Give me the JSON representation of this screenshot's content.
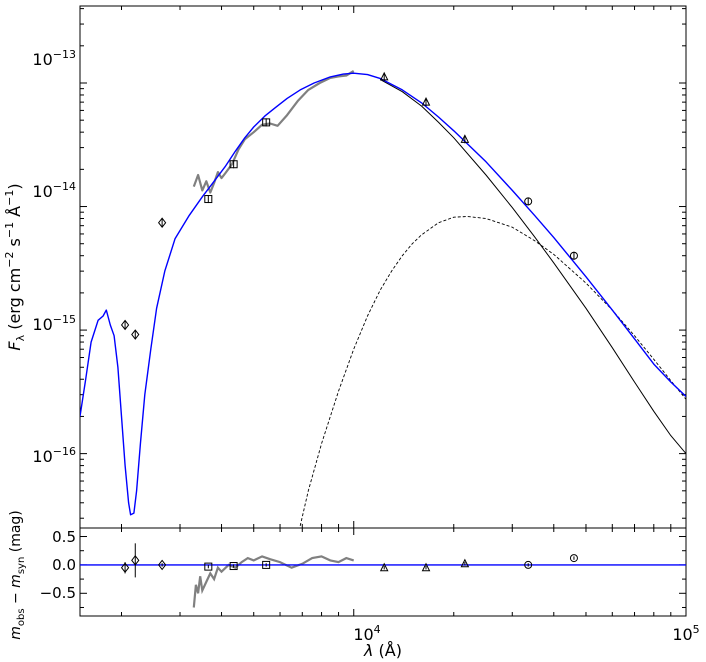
{
  "chart_data": [
    {
      "type": "line",
      "panel": "SED",
      "x_scale": "log",
      "y_scale": "log",
      "xlim": [
        1500,
        100000
      ],
      "ylim": [
        2.5e-17,
        4.2e-13
      ],
      "ylabel": "F_λ (erg cm^−2 s^−1 Å^−1)",
      "ylabel_parts": {
        "base": "F",
        "sub": "λ",
        "units": "(erg cm",
        "exp1": "−2",
        "s": " s",
        "exp2": "−1",
        "ang": " Å",
        "exp3": "−1",
        "close": ")"
      },
      "y_tick_labels": [
        {
          "value": 1e-13,
          "mant": "10",
          "exp": "−13"
        },
        {
          "value": 1e-14,
          "mant": "10",
          "exp": "−14"
        },
        {
          "value": 1e-15,
          "mant": "10",
          "exp": "−15"
        },
        {
          "value": 1e-16,
          "mant": "10",
          "exp": "−16"
        }
      ],
      "colors": {
        "total_model": "#0000ff",
        "hot_component": "#000000",
        "cool_component": "#000000",
        "spectrum": "#808080",
        "photometry": "#000000"
      },
      "series": [
        {
          "style": "blue-solid",
          "x": [
            1500,
            1560,
            1620,
            1700,
            1760,
            1800,
            1850,
            1900,
            1950,
            2000,
            2050,
            2100,
            2130,
            2180,
            2220,
            2280,
            2350,
            2450,
            2550,
            2700,
            2900,
            3200,
            3500,
            3800,
            4100,
            4400,
            4700,
            5000,
            5400,
            5800,
            6300,
            6900,
            7600,
            8500,
            9300,
            10000,
            11000,
            12000,
            14000,
            16000,
            18000,
            20000,
            25000,
            30000,
            35000,
            40000,
            50000,
            60000,
            70000,
            80000,
            90000,
            100000
          ],
          "y": [
            2e-16,
            4e-16,
            8e-16,
            1.2e-15,
            1.3e-15,
            1.45e-15,
            1.1e-15,
            9e-16,
            5e-16,
            2e-16,
            8e-17,
            4e-17,
            3.2e-17,
            3.3e-17,
            5e-17,
            1.2e-16,
            3e-16,
            7e-16,
            1.5e-15,
            3e-15,
            5.5e-15,
            8.5e-15,
            1.2e-14,
            1.6e-14,
            2.1e-14,
            2.8e-14,
            3.6e-14,
            4.4e-14,
            5.4e-14,
            6.3e-14,
            7.5e-14,
            8.8e-14,
            1e-13,
            1.12e-13,
            1.18e-13,
            1.2e-13,
            1.17e-13,
            1.09e-13,
            8.8e-14,
            6.9e-14,
            5.3e-14,
            4.1e-14,
            2.3e-14,
            1.35e-14,
            8.5e-15,
            5.6e-15,
            2.7e-15,
            1.45e-15,
            8.5e-16,
            5.3e-16,
            3.8e-16,
            2.9e-16
          ]
        },
        {
          "style": "black-solid",
          "x": [
            12000,
            14000,
            16000,
            18000,
            20000,
            25000,
            30000,
            35000,
            40000,
            50000,
            60000,
            70000,
            80000,
            90000,
            100000
          ],
          "y": [
            1.07e-13,
            8.5e-14,
            6.5e-14,
            4.8e-14,
            3.6e-14,
            1.8e-14,
            9.8e-15,
            5.7e-15,
            3.5e-15,
            1.5e-15,
            7.2e-16,
            3.8e-16,
            2.2e-16,
            1.4e-16,
            1e-16
          ]
        },
        {
          "style": "black-dashed",
          "x": [
            6900,
            7300,
            8000,
            9000,
            10000,
            11000,
            12000,
            13000,
            14000,
            15000,
            16000,
            18000,
            20000,
            22000,
            25000,
            30000,
            35000,
            40000,
            50000,
            60000,
            70000,
            80000,
            90000,
            100000
          ],
          "y": [
            2.6e-17,
            5e-17,
            1.2e-16,
            3.2e-16,
            7e-16,
            1.3e-15,
            2.1e-15,
            3e-15,
            4e-15,
            5e-15,
            5.9e-15,
            7.4e-15,
            8.2e-15,
            8.3e-15,
            8e-15,
            6.8e-15,
            5.3e-15,
            4.1e-15,
            2.4e-15,
            1.45e-15,
            9e-16,
            5.8e-16,
            3.9e-16,
            2.75e-16
          ]
        },
        {
          "style": "gray-spectrum",
          "x": [
            3300,
            3400,
            3500,
            3600,
            3700,
            3800,
            3900,
            4000,
            4100,
            4300,
            4500,
            4700,
            5000,
            5300,
            5600,
            5900,
            6300,
            6800,
            7300,
            7900,
            8500,
            9000,
            9500,
            10000
          ],
          "y": [
            1.45e-14,
            1.8e-14,
            1.35e-14,
            1.6e-14,
            1.3e-14,
            1.55e-14,
            1.9e-14,
            1.7e-14,
            1.85e-14,
            2.2e-14,
            2.9e-14,
            3.5e-14,
            4e-14,
            4.6e-14,
            4.7e-14,
            4.5e-14,
            5.5e-14,
            7.2e-14,
            8.8e-14,
            1e-13,
            1.1e-13,
            1.13e-13,
            1.15e-13,
            1.25e-13
          ]
        }
      ],
      "photometry": [
        {
          "x": 2050,
          "y": 1.1e-15,
          "marker": "diamond"
        },
        {
          "x": 2200,
          "y": 9.2e-16,
          "marker": "diamond"
        },
        {
          "x": 2650,
          "y": 7.4e-15,
          "marker": "diamond"
        },
        {
          "x": 3650,
          "y": 1.15e-14,
          "marker": "square"
        },
        {
          "x": 4350,
          "y": 2.2e-14,
          "marker": "square"
        },
        {
          "x": 5450,
          "y": 4.8e-14,
          "marker": "square"
        },
        {
          "x": 12350,
          "y": 1.12e-13,
          "marker": "triangle"
        },
        {
          "x": 16500,
          "y": 7e-14,
          "marker": "triangle"
        },
        {
          "x": 21600,
          "y": 3.5e-14,
          "marker": "triangle"
        },
        {
          "x": 33500,
          "y": 1.1e-14,
          "marker": "circle"
        },
        {
          "x": 46000,
          "y": 4e-15,
          "marker": "circle"
        }
      ]
    },
    {
      "type": "scatter",
      "panel": "residuals",
      "x_scale": "log",
      "xlim": [
        1500,
        100000
      ],
      "ylim": [
        -0.9,
        0.65
      ],
      "xlabel": "λ (Å)",
      "ylabel": "m_obs − m_syn (mag)",
      "ylabel_parts": {
        "m1": "m",
        "sub1": "obs",
        "minus": " − ",
        "m2": "m",
        "sub2": "syn",
        "units": " (mag)"
      },
      "xlabel_parts": {
        "lam": "λ",
        "units": " (Å)"
      },
      "x_tick_labels": [
        {
          "value": 10000,
          "mant": "10",
          "exp": "4"
        },
        {
          "value": 100000,
          "mant": "10",
          "exp": "5"
        }
      ],
      "y_tick_labels": [
        {
          "value": 0.5,
          "text": "0.5"
        },
        {
          "value": 0.0,
          "text": "0.0"
        },
        {
          "value": -0.5,
          "text": "−0.5"
        }
      ],
      "zero_line": 0.0,
      "residual_spectrum": {
        "x": [
          3300,
          3350,
          3400,
          3450,
          3500,
          3600,
          3700,
          3800,
          3900,
          4000,
          4200,
          4400,
          4600,
          4800,
          5000,
          5300,
          5600,
          6000,
          6500,
          7000,
          7500,
          8000,
          8500,
          9000,
          9500,
          10000
        ],
        "y": [
          -0.75,
          -0.35,
          -0.5,
          -0.2,
          -0.45,
          -0.3,
          -0.15,
          -0.25,
          -0.05,
          -0.12,
          0.0,
          -0.05,
          0.05,
          0.12,
          0.08,
          0.15,
          0.1,
          0.05,
          -0.05,
          0.02,
          0.12,
          0.15,
          0.08,
          0.05,
          0.12,
          0.08
        ]
      },
      "points": [
        {
          "x": 2050,
          "y": -0.05,
          "err": 0.1,
          "marker": "diamond"
        },
        {
          "x": 2200,
          "y": 0.08,
          "err": 0.3,
          "marker": "diamond"
        },
        {
          "x": 2650,
          "y": 0.0,
          "err": 0.03,
          "marker": "diamond"
        },
        {
          "x": 3650,
          "y": -0.03,
          "err": 0.03,
          "marker": "square"
        },
        {
          "x": 4350,
          "y": -0.02,
          "err": 0.03,
          "marker": "square"
        },
        {
          "x": 5450,
          "y": 0.0,
          "err": 0.03,
          "marker": "square"
        },
        {
          "x": 12350,
          "y": -0.05,
          "err": 0.03,
          "marker": "triangle"
        },
        {
          "x": 16500,
          "y": -0.05,
          "err": 0.03,
          "marker": "triangle"
        },
        {
          "x": 21600,
          "y": 0.02,
          "err": 0.03,
          "marker": "triangle"
        },
        {
          "x": 33500,
          "y": 0.0,
          "err": 0.03,
          "marker": "circle"
        },
        {
          "x": 46000,
          "y": 0.12,
          "err": 0.03,
          "marker": "circle"
        }
      ]
    }
  ]
}
